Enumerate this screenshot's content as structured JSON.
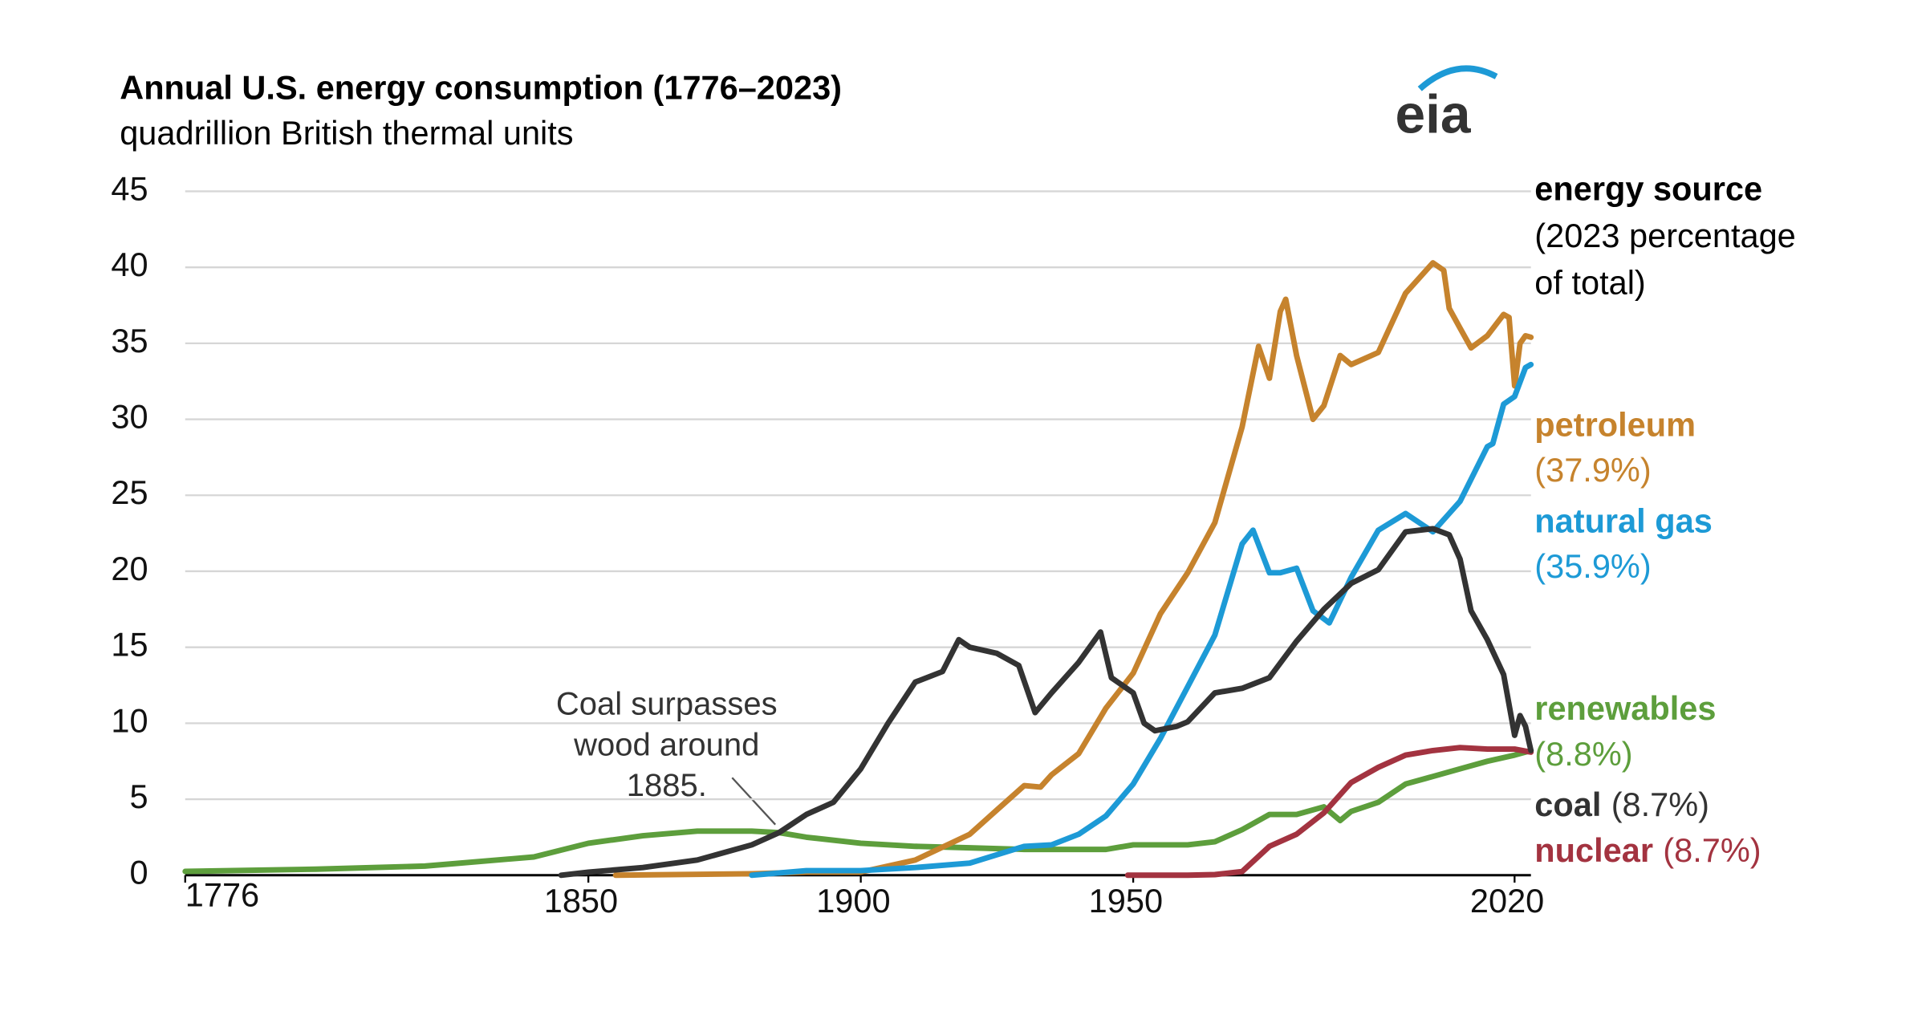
{
  "chart_data": {
    "type": "line",
    "title": "Annual U.S. energy consumption (1776–2023)",
    "subtitle": "quadrillion British thermal units",
    "logo": "eia",
    "legend_title": "energy source",
    "legend_subtitle": [
      "(2023 percentage",
      "of total)"
    ],
    "annotation": [
      "Coal surpasses",
      "wood around",
      "1885."
    ],
    "xlim": [
      1776,
      2023
    ],
    "xticks": [
      1776,
      1850,
      1900,
      1950,
      2020
    ],
    "ylim": [
      0,
      45
    ],
    "yticks": [
      0,
      5,
      10,
      15,
      20,
      25,
      30,
      35,
      40,
      45
    ],
    "grid": true,
    "series": [
      {
        "name": "petroleum",
        "share_label": "(37.9%)",
        "color": "#c6832d",
        "x": [
          1855,
          1880,
          1890,
          1900,
          1910,
          1920,
          1925,
          1930,
          1933,
          1935,
          1940,
          1945,
          1950,
          1955,
          1960,
          1965,
          1970,
          1973,
          1975,
          1977,
          1978,
          1980,
          1983,
          1985,
          1988,
          1990,
          1995,
          2000,
          2005,
          2007,
          2008,
          2010,
          2012,
          2015,
          2018,
          2019,
          2020,
          2021,
          2022,
          2023
        ],
        "values": [
          0,
          0.1,
          0.2,
          0.2,
          1.0,
          2.7,
          4.3,
          5.9,
          5.8,
          6.6,
          8.0,
          11.0,
          13.3,
          17.2,
          19.9,
          23.2,
          29.5,
          34.8,
          32.7,
          37.1,
          37.9,
          34.2,
          30.0,
          30.9,
          34.2,
          33.6,
          34.4,
          38.3,
          40.3,
          39.8,
          37.3,
          36.0,
          34.7,
          35.5,
          36.9,
          36.7,
          32.2,
          35.0,
          35.5,
          35.4
        ]
      },
      {
        "name": "natural gas",
        "share_label": "(35.9%)",
        "color": "#1d9ad6",
        "x": [
          1880,
          1890,
          1900,
          1910,
          1920,
          1930,
          1935,
          1940,
          1945,
          1950,
          1955,
          1960,
          1965,
          1970,
          1972,
          1975,
          1977,
          1980,
          1983,
          1986,
          1990,
          1995,
          2000,
          2005,
          2008,
          2010,
          2015,
          2016,
          2018,
          2020,
          2022,
          2023
        ],
        "values": [
          0,
          0.3,
          0.3,
          0.5,
          0.8,
          1.9,
          2.0,
          2.7,
          3.9,
          6.0,
          9.0,
          12.4,
          15.8,
          21.8,
          22.7,
          19.9,
          19.9,
          20.2,
          17.4,
          16.6,
          19.6,
          22.7,
          23.8,
          22.6,
          23.8,
          24.6,
          28.2,
          28.4,
          31.0,
          31.5,
          33.4,
          33.6
        ]
      },
      {
        "name": "renewables",
        "share_label": "(8.8%)",
        "color": "#5d9e3c",
        "x": [
          1776,
          1800,
          1820,
          1840,
          1850,
          1860,
          1870,
          1880,
          1885,
          1890,
          1900,
          1910,
          1920,
          1930,
          1940,
          1945,
          1950,
          1960,
          1965,
          1970,
          1975,
          1980,
          1985,
          1988,
          1990,
          1995,
          2000,
          2005,
          2010,
          2015,
          2020,
          2023
        ],
        "values": [
          0.25,
          0.4,
          0.6,
          1.2,
          2.1,
          2.6,
          2.9,
          2.9,
          2.8,
          2.5,
          2.1,
          1.9,
          1.8,
          1.7,
          1.7,
          1.7,
          2.0,
          2.0,
          2.2,
          3.0,
          4.0,
          4.0,
          4.5,
          3.6,
          4.2,
          4.8,
          6.0,
          6.5,
          7.0,
          7.5,
          7.9,
          8.2
        ]
      },
      {
        "name": "coal",
        "share_label": "(8.7%)",
        "color": "#333333",
        "x": [
          1845,
          1850,
          1860,
          1870,
          1880,
          1885,
          1890,
          1895,
          1900,
          1905,
          1910,
          1915,
          1918,
          1920,
          1925,
          1929,
          1932,
          1935,
          1940,
          1944,
          1946,
          1950,
          1952,
          1954,
          1958,
          1960,
          1965,
          1970,
          1975,
          1980,
          1985,
          1990,
          1995,
          2000,
          2005,
          2008,
          2010,
          2012,
          2015,
          2018,
          2020,
          2021,
          2022,
          2023
        ],
        "values": [
          0,
          0.2,
          0.5,
          1.0,
          2.0,
          2.8,
          4.0,
          4.8,
          7.0,
          10.0,
          12.7,
          13.4,
          15.5,
          15.0,
          14.6,
          13.8,
          10.7,
          12.0,
          14.0,
          16.0,
          13.0,
          12.0,
          10.0,
          9.5,
          9.8,
          10.1,
          12.0,
          12.3,
          13.0,
          15.4,
          17.5,
          19.2,
          20.1,
          22.6,
          22.8,
          22.4,
          20.8,
          17.4,
          15.5,
          13.2,
          9.2,
          10.5,
          9.8,
          8.2
        ]
      },
      {
        "name": "nuclear",
        "share_label": "(8.7%)",
        "color": "#a33340",
        "x": [
          1949,
          1957,
          1960,
          1965,
          1970,
          1975,
          1980,
          1985,
          1990,
          1995,
          2000,
          2005,
          2010,
          2015,
          2020,
          2023
        ],
        "values": [
          0,
          0,
          0,
          0.04,
          0.24,
          1.9,
          2.7,
          4.1,
          6.1,
          7.1,
          7.9,
          8.2,
          8.4,
          8.3,
          8.3,
          8.1
        ]
      }
    ]
  }
}
